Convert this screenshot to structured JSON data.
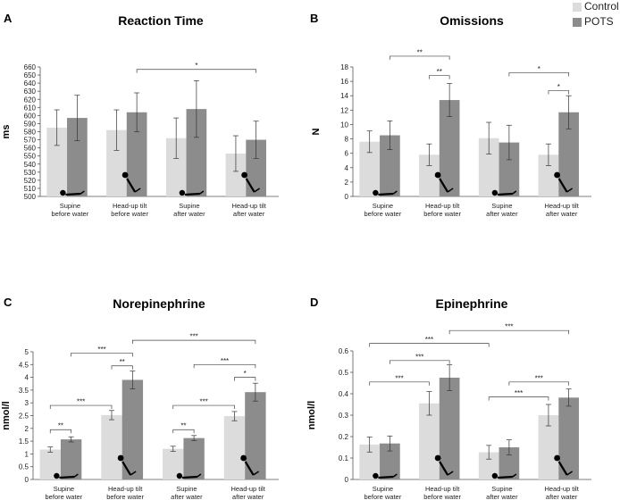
{
  "legend": {
    "control_label": "Control",
    "pots_label": "POTS",
    "control_color": "#dcdcdc",
    "pots_color": "#8c8c8c"
  },
  "chart_data": [
    {
      "panel_letter": "A",
      "type": "bar",
      "title": "Reaction Time",
      "xlabel": "",
      "ylabel": "ms",
      "ylim": [
        500,
        660
      ],
      "yticks": [
        "500",
        "510",
        "520",
        "530",
        "540",
        "550",
        "560",
        "570",
        "580",
        "590",
        "600",
        "610",
        "620",
        "630",
        "640",
        "650",
        "660"
      ],
      "categories": [
        [
          "Supine",
          "before water"
        ],
        [
          "Head-up tilt",
          "before water"
        ],
        [
          "Supine",
          "after water"
        ],
        [
          "Head-up tilt",
          "after water"
        ]
      ],
      "posture": [
        "supine",
        "tilt",
        "supine",
        "tilt"
      ],
      "series": [
        {
          "name": "Control",
          "values": [
            585,
            582,
            572,
            553
          ],
          "errors": [
            22,
            25,
            25,
            22
          ]
        },
        {
          "name": "POTS",
          "values": [
            597,
            604,
            608,
            570
          ],
          "errors": [
            28,
            24,
            35,
            23
          ]
        }
      ],
      "significance": [
        {
          "from": [
            1,
            1
          ],
          "to": [
            3,
            1
          ],
          "label": "*",
          "y": 657
        }
      ]
    },
    {
      "panel_letter": "B",
      "type": "bar",
      "title": "Omissions",
      "xlabel": "",
      "ylabel": "N",
      "ylim": [
        0,
        18
      ],
      "yticks": [
        "0",
        "2",
        "4",
        "6",
        "8",
        "10",
        "12",
        "14",
        "16",
        "18"
      ],
      "categories": [
        [
          "Supine",
          "before water"
        ],
        [
          "Head-up tilt",
          "before water"
        ],
        [
          "Supine",
          "after water"
        ],
        [
          "Head-up tilt",
          "after water"
        ]
      ],
      "posture": [
        "supine",
        "tilt",
        "supine",
        "tilt"
      ],
      "series": [
        {
          "name": "Control",
          "values": [
            7.6,
            5.8,
            8.1,
            5.8
          ],
          "errors": [
            1.5,
            1.5,
            2.2,
            1.5
          ]
        },
        {
          "name": "POTS",
          "values": [
            8.5,
            13.4,
            7.5,
            11.7
          ],
          "errors": [
            2.0,
            2.3,
            2.4,
            2.3
          ]
        }
      ],
      "significance": [
        {
          "from": [
            0,
            1
          ],
          "to": [
            1,
            1
          ],
          "label": "**",
          "y": 19.5
        },
        {
          "from": [
            1,
            0
          ],
          "to": [
            1,
            1
          ],
          "label": "**",
          "y": 16.8
        },
        {
          "from": [
            2,
            1
          ],
          "to": [
            3,
            1
          ],
          "label": "*",
          "y": 17.2
        },
        {
          "from": [
            3,
            0
          ],
          "to": [
            3,
            1
          ],
          "label": "*",
          "y": 14.7
        }
      ]
    },
    {
      "panel_letter": "C",
      "type": "bar",
      "title": "Norepinephrine",
      "xlabel": "",
      "ylabel": "nmol/l",
      "ylim": [
        0,
        5
      ],
      "yticks": [
        "0",
        "0.5",
        "1",
        "1.5",
        "2",
        "2.5",
        "3",
        "3.5",
        "4",
        "4.5",
        "5"
      ],
      "categories": [
        [
          "Supine",
          "before water"
        ],
        [
          "Head-up tilt",
          "before water"
        ],
        [
          "Supine",
          "after water"
        ],
        [
          "Head-up tilt",
          "after water"
        ]
      ],
      "posture": [
        "supine",
        "tilt",
        "supine",
        "tilt"
      ],
      "series": [
        {
          "name": "Control",
          "values": [
            1.17,
            2.52,
            1.2,
            2.48
          ],
          "errors": [
            0.1,
            0.18,
            0.1,
            0.18
          ]
        },
        {
          "name": "POTS",
          "values": [
            1.57,
            3.9,
            1.62,
            3.42
          ],
          "errors": [
            0.1,
            0.35,
            0.1,
            0.35
          ]
        }
      ],
      "significance": [
        {
          "from": [
            0,
            0
          ],
          "to": [
            0,
            1
          ],
          "label": "**",
          "y": 1.95
        },
        {
          "from": [
            0,
            0
          ],
          "to": [
            1,
            0
          ],
          "label": "***",
          "y": 2.9
        },
        {
          "from": [
            1,
            0
          ],
          "to": [
            1,
            1
          ],
          "label": "**",
          "y": 4.45
        },
        {
          "from": [
            0,
            1
          ],
          "to": [
            1,
            1
          ],
          "label": "***",
          "y": 4.95
        },
        {
          "from": [
            1,
            1
          ],
          "to": [
            3,
            1
          ],
          "label": "***",
          "y": 5.45
        },
        {
          "from": [
            2,
            0
          ],
          "to": [
            2,
            1
          ],
          "label": "**",
          "y": 1.95
        },
        {
          "from": [
            2,
            0
          ],
          "to": [
            3,
            0
          ],
          "label": "***",
          "y": 2.9
        },
        {
          "from": [
            3,
            0
          ],
          "to": [
            3,
            1
          ],
          "label": "*",
          "y": 4.0
        },
        {
          "from": [
            2,
            1
          ],
          "to": [
            3,
            1
          ],
          "label": "***",
          "y": 4.5
        }
      ]
    },
    {
      "panel_letter": "D",
      "type": "bar",
      "title": "Epinephrine",
      "xlabel": "",
      "ylabel": "nmol/l",
      "ylim": [
        0,
        0.6
      ],
      "yticks": [
        "0",
        "0.1",
        "0.2",
        "0.3",
        "0.4",
        "0.5",
        "0.6"
      ],
      "categories": [
        [
          "Supine",
          "before water"
        ],
        [
          "Head-up tilt",
          "before water"
        ],
        [
          "Supine",
          "after water"
        ],
        [
          "Head-up tilt",
          "after water"
        ]
      ],
      "posture": [
        "supine",
        "tilt",
        "supine",
        "tilt"
      ],
      "series": [
        {
          "name": "Control",
          "values": [
            0.163,
            0.355,
            0.127,
            0.3
          ],
          "errors": [
            0.035,
            0.055,
            0.032,
            0.05
          ]
        },
        {
          "name": "POTS",
          "values": [
            0.168,
            0.475,
            0.15,
            0.382
          ],
          "errors": [
            0.035,
            0.06,
            0.035,
            0.04
          ]
        }
      ],
      "significance": [
        {
          "from": [
            0,
            0
          ],
          "to": [
            1,
            0
          ],
          "label": "***",
          "y": 0.455
        },
        {
          "from": [
            0,
            1
          ],
          "to": [
            1,
            1
          ],
          "label": "***",
          "y": 0.555
        },
        {
          "from": [
            0,
            0
          ],
          "to": [
            2,
            0
          ],
          "label": "***",
          "y": 0.635
        },
        {
          "from": [
            1,
            1
          ],
          "to": [
            3,
            1
          ],
          "label": "***",
          "y": 0.695
        },
        {
          "from": [
            2,
            0
          ],
          "to": [
            3,
            0
          ],
          "label": "***",
          "y": 0.385
        },
        {
          "from": [
            2,
            1
          ],
          "to": [
            3,
            1
          ],
          "label": "***",
          "y": 0.455
        }
      ]
    }
  ]
}
